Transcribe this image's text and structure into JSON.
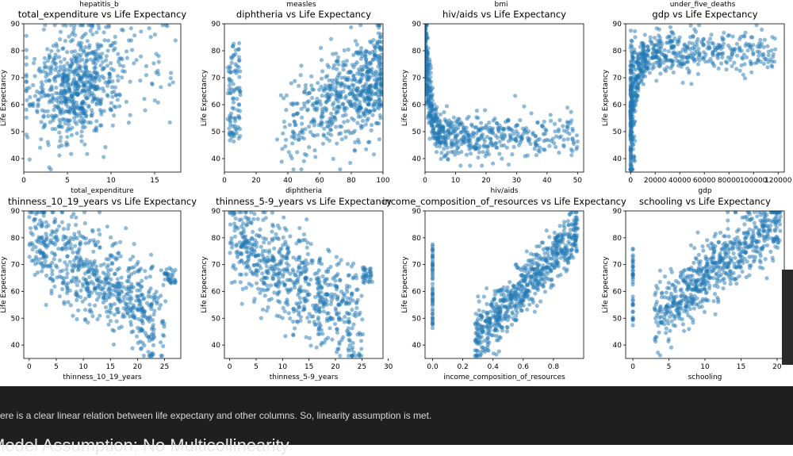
{
  "colors": {
    "point": "#1f77b4",
    "axis": "#000000",
    "bg": "#ffffff",
    "dark_bg": "#1f1f1f"
  },
  "top_labels": [
    "hepatitis_b",
    "measles",
    "bmi",
    "under_five_deaths"
  ],
  "notebook": {
    "note": "ere is a clear linear relation between life expectany and other columns. So, linearity assumption is met.",
    "heading": "Model Assumption: No Multicollinearity"
  },
  "chart_data": [
    {
      "type": "scatter",
      "title": "total_expenditure vs Life Expectancy",
      "xlabel": "total_expenditure",
      "ylabel": "Life Expectancy",
      "xlim": [
        0,
        18
      ],
      "ylim": [
        35,
        90
      ],
      "xticks": [
        0,
        5,
        10,
        15
      ],
      "yticks": [
        40,
        50,
        60,
        70,
        80,
        90
      ],
      "xtick_labels": [
        "0",
        "5",
        "10",
        "15"
      ],
      "pattern": "blob",
      "blob": {
        "x": [
          1,
          12
        ],
        "y": [
          45,
          88
        ],
        "center": [
          6,
          68
        ]
      }
    },
    {
      "type": "scatter",
      "title": "diphtheria vs Life Expectancy",
      "xlabel": "diphtheria",
      "ylabel": "Life Expectancy",
      "xlim": [
        0,
        100
      ],
      "ylim": [
        35,
        90
      ],
      "xticks": [
        0,
        20,
        40,
        60,
        80,
        100
      ],
      "yticks": [
        40,
        50,
        60,
        70,
        80,
        90
      ],
      "xtick_labels": [
        "0",
        "20",
        "40",
        "60",
        "80",
        "100"
      ],
      "pattern": "rising_right"
    },
    {
      "type": "scatter",
      "title": "hiv/aids vs Life Expectancy",
      "xlabel": "hiv/aids",
      "ylabel": "Life Expectancy",
      "xlim": [
        0,
        52
      ],
      "ylim": [
        35,
        90
      ],
      "xticks": [
        0,
        10,
        20,
        30,
        40,
        50
      ],
      "yticks": [
        40,
        50,
        60,
        70,
        80,
        90
      ],
      "xtick_labels": [
        "0",
        "10",
        "20",
        "30",
        "40",
        "50"
      ],
      "pattern": "decay"
    },
    {
      "type": "scatter",
      "title": "gdp vs Life Expectancy",
      "xlabel": "gdp",
      "ylabel": "Life Expectancy",
      "xlim": [
        -4000,
        125000
      ],
      "ylim": [
        35,
        90
      ],
      "xticks": [
        0,
        20000,
        40000,
        60000,
        80000,
        100000,
        120000
      ],
      "yticks": [
        40,
        50,
        60,
        70,
        80,
        90
      ],
      "xtick_labels": [
        "0",
        "20000",
        "40000",
        "60000",
        "80000",
        "100000",
        "120000"
      ],
      "pattern": "saturating"
    },
    {
      "type": "scatter",
      "title": "thinness_10_19_years vs Life Expectancy",
      "xlabel": "thinness_10_19_years",
      "ylabel": "Life Expectancy",
      "xlim": [
        -1,
        28
      ],
      "ylim": [
        35,
        90
      ],
      "xticks": [
        0,
        5,
        10,
        15,
        20,
        25
      ],
      "yticks": [
        40,
        50,
        60,
        70,
        80,
        90
      ],
      "xtick_labels": [
        "0",
        "5",
        "10",
        "15",
        "20",
        "25"
      ],
      "pattern": "thin_bands"
    },
    {
      "type": "scatter",
      "title": "thinness_5-9_years vs Life Expectancy",
      "xlabel": "thinness_5-9_years",
      "ylabel": "Life Expectancy",
      "xlim": [
        -1,
        29
      ],
      "ylim": [
        35,
        90
      ],
      "xticks": [
        0,
        5,
        10,
        15,
        20,
        25,
        30
      ],
      "yticks": [
        40,
        50,
        60,
        70,
        80,
        90
      ],
      "xtick_labels": [
        "0",
        "5",
        "10",
        "15",
        "20",
        "25",
        "30"
      ],
      "pattern": "thin_bands"
    },
    {
      "type": "scatter",
      "title": "income_composition_of_resources vs Life Expectancy",
      "xlabel": "income_composition_of_resources",
      "ylabel": "Life Expectancy",
      "xlim": [
        -0.05,
        1.0
      ],
      "ylim": [
        35,
        90
      ],
      "xticks": [
        0,
        0.2,
        0.4,
        0.6,
        0.8
      ],
      "yticks": [
        40,
        50,
        60,
        70,
        80,
        90
      ],
      "xtick_labels": [
        "0.0",
        "0.2",
        "0.4",
        "0.6",
        "0.8"
      ],
      "pattern": "linear_icr"
    },
    {
      "type": "scatter",
      "title": "schooling vs Life Expectancy",
      "xlabel": "schooling",
      "ylabel": "Life Expectancy",
      "xlim": [
        -1,
        21
      ],
      "ylim": [
        35,
        90
      ],
      "xticks": [
        0,
        5,
        10,
        15,
        20
      ],
      "yticks": [
        40,
        50,
        60,
        70,
        80,
        90
      ],
      "xtick_labels": [
        "0",
        "5",
        "10",
        "15",
        "20"
      ],
      "pattern": "linear_school"
    }
  ]
}
